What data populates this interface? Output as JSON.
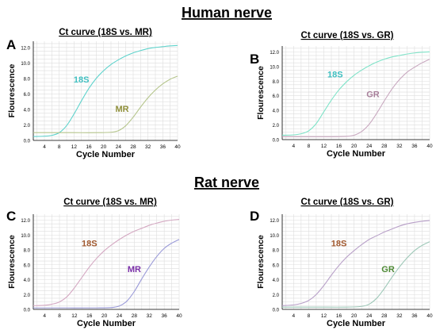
{
  "figure": {
    "section_titles": [
      "Human nerve",
      "Rat nerve"
    ]
  },
  "chart_data": [
    {
      "type": "line",
      "letter": "A",
      "title": "Ct curve (18S vs. MR)",
      "xlabel": "Cycle Number",
      "ylabel": "Flourescence",
      "xlim": [
        1,
        40
      ],
      "ylim": [
        0,
        12.8
      ],
      "xticks": [
        4,
        8,
        12,
        16,
        20,
        24,
        28,
        32,
        36,
        40
      ],
      "yticks": [
        0.0,
        2.0,
        4.0,
        6.0,
        8.0,
        10.0,
        12.0
      ],
      "xtick_labels": [
        "4",
        "8",
        "12",
        "16",
        "20",
        "24",
        "28",
        "32",
        "36",
        "40"
      ],
      "ytick_labels": [
        "0.0",
        "2.0",
        "4.0",
        "6.0",
        "8.0",
        "10.0",
        "12.0"
      ],
      "grid": true,
      "series": [
        {
          "name": "18S",
          "color": "#5fd3cc",
          "label_color": "#3fbfc0",
          "x": [
            1,
            4,
            6,
            8,
            10,
            12,
            14,
            16,
            18,
            20,
            22,
            24,
            26,
            28,
            30,
            32,
            34,
            36,
            38,
            40
          ],
          "values": [
            0.5,
            0.55,
            0.65,
            1.0,
            1.9,
            3.4,
            5.1,
            6.7,
            8.0,
            9.0,
            9.8,
            10.4,
            10.9,
            11.3,
            11.6,
            11.85,
            12.0,
            12.1,
            12.2,
            12.25
          ],
          "label_x": 14,
          "label_y": 7.5
        },
        {
          "name": "MR",
          "color": "#b5c58c",
          "label_color": "#8f8f3a",
          "x": [
            1,
            6,
            12,
            18,
            22,
            24,
            26,
            28,
            30,
            32,
            34,
            36,
            38,
            40
          ],
          "values": [
            1.0,
            1.0,
            1.0,
            1.0,
            1.05,
            1.25,
            1.9,
            3.0,
            4.3,
            5.5,
            6.5,
            7.3,
            7.9,
            8.3
          ],
          "label_x": 25,
          "label_y": 3.7
        }
      ]
    },
    {
      "type": "line",
      "letter": "B",
      "title": "Ct curve (18S vs. GR)",
      "xlabel": "Cycle Number",
      "ylabel": "Flourescence",
      "xlim": [
        1,
        40
      ],
      "ylim": [
        0,
        12.8
      ],
      "xticks": [
        4,
        8,
        12,
        16,
        20,
        24,
        28,
        32,
        36,
        40
      ],
      "yticks": [
        0.0,
        2.0,
        4.0,
        6.0,
        8.0,
        10.0,
        12.0
      ],
      "xtick_labels": [
        "4",
        "8",
        "12",
        "16",
        "20",
        "24",
        "28",
        "32",
        "36",
        "40"
      ],
      "ytick_labels": [
        "0.0",
        "2.0",
        "4.0",
        "6.0",
        "8.0",
        "10.0",
        "12.0"
      ],
      "grid": true,
      "series": [
        {
          "name": "18S",
          "color": "#7fe3c8",
          "label_color": "#3fbfc0",
          "x": [
            1,
            4,
            6,
            8,
            10,
            12,
            14,
            16,
            18,
            20,
            22,
            24,
            26,
            28,
            30,
            32,
            34,
            36,
            38,
            40
          ],
          "values": [
            0.6,
            0.65,
            0.8,
            1.2,
            2.2,
            3.8,
            5.4,
            6.8,
            7.9,
            8.8,
            9.5,
            10.1,
            10.6,
            11.0,
            11.3,
            11.5,
            11.7,
            11.85,
            11.95,
            12.0
          ],
          "label_x": 15,
          "label_y": 8.5
        },
        {
          "name": "GR",
          "color": "#c9a9c0",
          "label_color": "#a77f9a",
          "x": [
            1,
            8,
            14,
            18,
            20,
            22,
            24,
            26,
            28,
            30,
            32,
            34,
            36,
            38,
            40
          ],
          "values": [
            0.4,
            0.4,
            0.4,
            0.45,
            0.6,
            1.1,
            2.1,
            3.6,
            5.3,
            6.9,
            8.2,
            9.2,
            9.9,
            10.5,
            11.0
          ],
          "label_x": 25,
          "label_y": 5.8
        }
      ]
    },
    {
      "type": "line",
      "letter": "C",
      "title": "Ct curve (18S vs. MR)",
      "xlabel": "Cycle Number",
      "ylabel": "Flourescence",
      "xlim": [
        1,
        40
      ],
      "ylim": [
        0,
        12.8
      ],
      "xticks": [
        4,
        8,
        12,
        16,
        20,
        24,
        28,
        32,
        36,
        40
      ],
      "yticks": [
        0.0,
        2.0,
        4.0,
        6.0,
        8.0,
        10.0,
        12.0
      ],
      "xtick_labels": [
        "4",
        "8",
        "12",
        "16",
        "20",
        "24",
        "28",
        "32",
        "36",
        "40"
      ],
      "ytick_labels": [
        "0.0",
        "2.0",
        "4.0",
        "6.0",
        "8.0",
        "10.0",
        "12.0"
      ],
      "grid": true,
      "series": [
        {
          "name": "18S",
          "color": "#d4a8c2",
          "label_color": "#a0582e",
          "x": [
            1,
            4,
            6,
            8,
            10,
            12,
            14,
            16,
            18,
            20,
            22,
            24,
            26,
            28,
            30,
            32,
            34,
            36,
            38,
            40
          ],
          "values": [
            0.5,
            0.55,
            0.7,
            1.0,
            1.7,
            2.9,
            4.3,
            5.7,
            6.9,
            7.9,
            8.7,
            9.4,
            10.0,
            10.5,
            10.9,
            11.3,
            11.6,
            11.85,
            12.0,
            12.1
          ],
          "label_x": 16,
          "label_y": 8.5
        },
        {
          "name": "MR",
          "color": "#9a9ad8",
          "label_color": "#7a2fa8",
          "x": [
            1,
            10,
            18,
            22,
            24,
            26,
            28,
            30,
            32,
            34,
            36,
            38,
            40
          ],
          "values": [
            0.2,
            0.2,
            0.2,
            0.25,
            0.45,
            1.1,
            2.4,
            4.1,
            5.7,
            7.1,
            8.2,
            8.9,
            9.4
          ],
          "label_x": 28,
          "label_y": 5.0
        }
      ]
    },
    {
      "type": "line",
      "letter": "D",
      "title": "Ct curve (18S vs. GR)",
      "xlabel": "Cycle Number",
      "ylabel": "Flourescence",
      "xlim": [
        1,
        40
      ],
      "ylim": [
        0,
        12.8
      ],
      "xticks": [
        4,
        8,
        12,
        16,
        20,
        24,
        28,
        32,
        36,
        40
      ],
      "yticks": [
        0.0,
        2.0,
        4.0,
        6.0,
        8.0,
        10.0,
        12.0
      ],
      "xtick_labels": [
        "4",
        "8",
        "12",
        "16",
        "20",
        "24",
        "28",
        "32",
        "36",
        "40"
      ],
      "ytick_labels": [
        "0.0",
        "2.0",
        "4.0",
        "6.0",
        "8.0",
        "10.0",
        "12.0"
      ],
      "grid": true,
      "series": [
        {
          "name": "18S",
          "color": "#b8a0c8",
          "label_color": "#a0582e",
          "x": [
            1,
            4,
            6,
            8,
            10,
            12,
            14,
            16,
            18,
            20,
            22,
            24,
            26,
            28,
            30,
            32,
            34,
            36,
            38,
            40
          ],
          "values": [
            0.5,
            0.6,
            0.8,
            1.2,
            2.0,
            3.2,
            4.6,
            5.9,
            7.0,
            7.9,
            8.7,
            9.4,
            9.9,
            10.4,
            10.8,
            11.2,
            11.5,
            11.7,
            11.85,
            11.95
          ],
          "label_x": 16,
          "label_y": 8.5
        },
        {
          "name": "GR",
          "color": "#9ec8b8",
          "label_color": "#4e8a35",
          "x": [
            1,
            10,
            18,
            22,
            24,
            26,
            28,
            30,
            32,
            34,
            36,
            38,
            40
          ],
          "values": [
            0.3,
            0.3,
            0.3,
            0.4,
            0.7,
            1.5,
            2.8,
            4.3,
            5.7,
            6.9,
            7.9,
            8.6,
            9.1
          ],
          "label_x": 29,
          "label_y": 5.0
        }
      ]
    }
  ]
}
